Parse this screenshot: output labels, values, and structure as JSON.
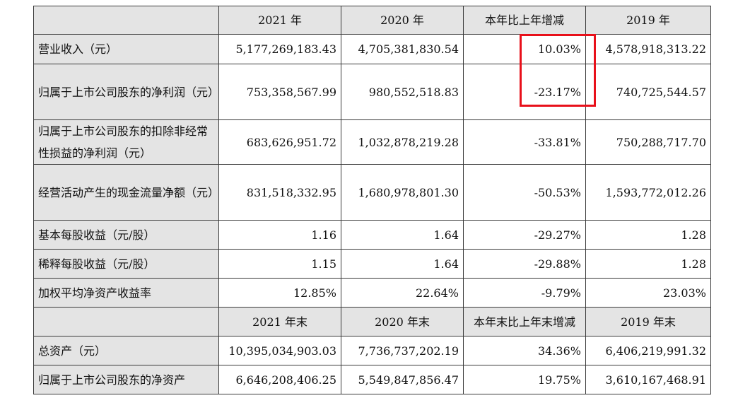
{
  "header1": [
    "2021 年",
    "2020 年",
    "本年比上年增减",
    "2019 年"
  ],
  "header2": [
    "2021 年末",
    "2020 年末",
    "本年末比上年末增减",
    "2019 年末"
  ],
  "rows": [
    {
      "label": "营业收入（元）",
      "v2021": "5,177,269,183.43",
      "v2020": "4,705,381,830.54",
      "change": "10.03%",
      "v2019": "4,578,918,313.22"
    },
    {
      "label": "归属于上市公司股东的净利润（元）",
      "v2021": "753,358,567.99",
      "v2020": "980,552,518.83",
      "change": "-23.17%",
      "v2019": "740,725,544.57"
    },
    {
      "label": "归属于上市公司股东的扣除非经常性损益的净利润（元）",
      "v2021": "683,626,951.72",
      "v2020": "1,032,878,219.28",
      "change": "-33.81%",
      "v2019": "750,288,717.70"
    },
    {
      "label": "经营活动产生的现金流量净额（元）",
      "v2021": "831,518,332.95",
      "v2020": "1,680,978,801.30",
      "change": "-50.53%",
      "v2019": "1,593,772,012.26"
    },
    {
      "label": "基本每股收益（元/股）",
      "v2021": "1.16",
      "v2020": "1.64",
      "change": "-29.27%",
      "v2019": "1.28"
    },
    {
      "label": "稀释每股收益（元/股）",
      "v2021": "1.15",
      "v2020": "1.64",
      "change": "-29.88%",
      "v2019": "1.28"
    },
    {
      "label": "加权平均净资产收益率",
      "v2021": "12.85%",
      "v2020": "22.64%",
      "change": "-9.79%",
      "v2019": "23.03%"
    }
  ],
  "rows2": [
    {
      "label": "总资产（元）",
      "v2021": "10,395,034,903.03",
      "v2020": "7,736,737,202.19",
      "change": "34.36%",
      "v2019": "6,406,219,991.32"
    },
    {
      "label": "归属于上市公司股东的净资产",
      "v2021": "6,646,208,406.25",
      "v2020": "5,549,847,856.47",
      "change": "19.75%",
      "v2019": "3,610,167,468.91"
    }
  ],
  "highlight": {
    "color": "#e8101a"
  }
}
